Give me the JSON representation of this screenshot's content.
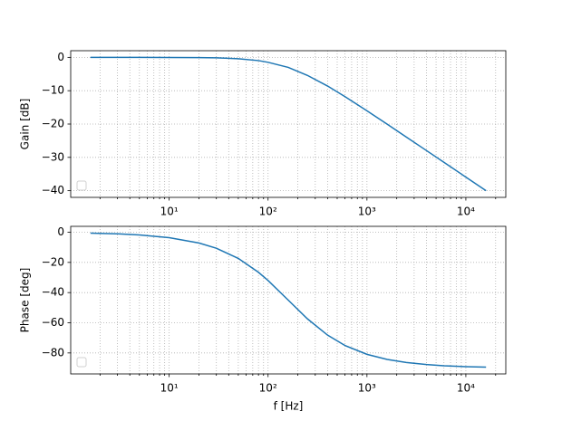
{
  "chart_data": [
    {
      "type": "line",
      "ylabel": "Gain [dB]",
      "log_x": true,
      "grid": true,
      "x": [
        1.6,
        3,
        5,
        10,
        20,
        30,
        50,
        80,
        100,
        160,
        250,
        400,
        600,
        1000,
        1600,
        2500,
        4000,
        6000,
        10000,
        16000
      ],
      "series": [
        {
          "color": "#1f77b4",
          "values": [
            0.0,
            0.0,
            0.0,
            -0.02,
            -0.07,
            -0.15,
            -0.41,
            -0.97,
            -1.48,
            -3.01,
            -5.4,
            -8.6,
            -11.78,
            -16.03,
            -20.04,
            -23.89,
            -27.96,
            -31.48,
            -35.92,
            -40.0
          ]
        }
      ],
      "xlim": [
        1.01,
        25350
      ],
      "xticks": [
        {
          "value": 10,
          "label": "10¹"
        },
        {
          "value": 100,
          "label": "10²"
        },
        {
          "value": 1000,
          "label": "10³"
        },
        {
          "value": 10000,
          "label": "10⁴"
        }
      ],
      "xminorticks": [
        2,
        3,
        4,
        5,
        6,
        7,
        8,
        9,
        20,
        30,
        40,
        50,
        60,
        70,
        80,
        90,
        200,
        300,
        400,
        500,
        600,
        700,
        800,
        900,
        2000,
        3000,
        4000,
        5000,
        6000,
        7000,
        8000,
        9000,
        20000
      ],
      "ylim": [
        -42,
        2
      ],
      "yticks": [
        0,
        {
          "value": -10,
          "label": "−10"
        },
        {
          "value": -20,
          "label": "−20"
        },
        {
          "value": -30,
          "label": "−30"
        },
        {
          "value": -40,
          "label": "−40"
        }
      ]
    },
    {
      "type": "line",
      "ylabel": "Phase [deg]",
      "xlabel": "f [Hz]",
      "log_x": true,
      "grid": true,
      "x": [
        1.6,
        3,
        5,
        10,
        20,
        30,
        50,
        80,
        100,
        160,
        250,
        400,
        600,
        1000,
        1600,
        2500,
        4000,
        6000,
        10000,
        16000
      ],
      "series": [
        {
          "color": "#1f77b4",
          "values": [
            -0.57,
            -1.07,
            -1.79,
            -3.58,
            -7.13,
            -10.62,
            -17.35,
            -26.57,
            -32.01,
            -45.0,
            -57.38,
            -68.2,
            -75.07,
            -80.91,
            -84.29,
            -86.34,
            -87.71,
            -88.47,
            -89.08,
            -89.43
          ]
        }
      ],
      "xlim": [
        1.01,
        25350
      ],
      "xticks": [
        {
          "value": 10,
          "label": "10¹"
        },
        {
          "value": 100,
          "label": "10²"
        },
        {
          "value": 1000,
          "label": "10³"
        },
        {
          "value": 10000,
          "label": "10⁴"
        }
      ],
      "xminorticks": [
        2,
        3,
        4,
        5,
        6,
        7,
        8,
        9,
        20,
        30,
        40,
        50,
        60,
        70,
        80,
        90,
        200,
        300,
        400,
        500,
        600,
        700,
        800,
        900,
        2000,
        3000,
        4000,
        5000,
        6000,
        7000,
        8000,
        9000,
        20000
      ],
      "ylim": [
        -93.9,
        3.9
      ],
      "yticks": [
        0,
        {
          "value": -20,
          "label": "−20"
        },
        {
          "value": -40,
          "label": "−40"
        },
        {
          "value": -60,
          "label": "−60"
        },
        {
          "value": -80,
          "label": "−80"
        }
      ]
    }
  ]
}
